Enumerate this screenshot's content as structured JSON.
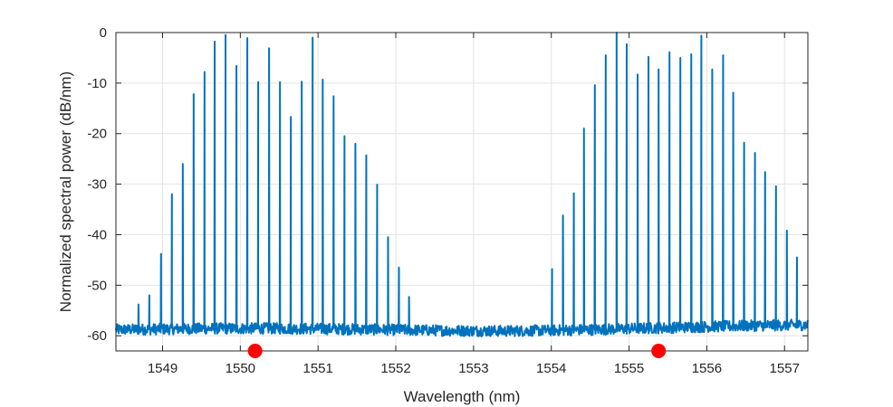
{
  "chart_data": {
    "type": "line",
    "title": "",
    "xlabel": "Wavelength (nm)",
    "ylabel": "Normalized spectral power (dB/nm)",
    "xlim": [
      1548.4,
      1557.3
    ],
    "ylim": [
      -63,
      0
    ],
    "xticks": [
      "1549",
      "1550",
      "1551",
      "1552",
      "1553",
      "1554",
      "1555",
      "1556",
      "1557"
    ],
    "yticks": [
      "0",
      "-10",
      "-20",
      "-30",
      "-40",
      "-50",
      "-60"
    ],
    "grid": true,
    "line_color": "#0072BD",
    "noise_floor_db": -58.8,
    "series": [
      {
        "peaks": [
          {
            "x": 1548.69,
            "y": -53.8
          },
          {
            "x": 1548.83,
            "y": -52.0
          },
          {
            "x": 1548.98,
            "y": -43.8
          },
          {
            "x": 1549.12,
            "y": -32.0
          },
          {
            "x": 1549.26,
            "y": -26.0
          },
          {
            "x": 1549.4,
            "y": -12.2
          },
          {
            "x": 1549.54,
            "y": -7.8
          },
          {
            "x": 1549.67,
            "y": -1.8
          },
          {
            "x": 1549.81,
            "y": -0.5
          },
          {
            "x": 1549.95,
            "y": -6.6
          },
          {
            "x": 1550.09,
            "y": -1.1
          },
          {
            "x": 1550.23,
            "y": -9.8
          },
          {
            "x": 1550.37,
            "y": -3.1
          },
          {
            "x": 1550.51,
            "y": -9.8
          },
          {
            "x": 1550.65,
            "y": -16.7
          },
          {
            "x": 1550.79,
            "y": -9.7
          },
          {
            "x": 1550.93,
            "y": -1.0
          },
          {
            "x": 1551.06,
            "y": -9.3
          },
          {
            "x": 1551.2,
            "y": -12.6
          },
          {
            "x": 1551.34,
            "y": -20.5
          },
          {
            "x": 1551.48,
            "y": -22.0
          },
          {
            "x": 1551.62,
            "y": -24.3
          },
          {
            "x": 1551.76,
            "y": -30.1
          },
          {
            "x": 1551.9,
            "y": -40.5
          },
          {
            "x": 1552.04,
            "y": -46.5
          },
          {
            "x": 1552.17,
            "y": -52.3
          }
        ]
      },
      {
        "peaks": [
          {
            "x": 1554.01,
            "y": -46.8
          },
          {
            "x": 1554.15,
            "y": -36.2
          },
          {
            "x": 1554.29,
            "y": -31.8
          },
          {
            "x": 1554.42,
            "y": -19.0
          },
          {
            "x": 1554.56,
            "y": -10.4
          },
          {
            "x": 1554.7,
            "y": -4.5
          },
          {
            "x": 1554.84,
            "y": 0.0
          },
          {
            "x": 1554.97,
            "y": -2.3
          },
          {
            "x": 1555.11,
            "y": -8.3
          },
          {
            "x": 1555.25,
            "y": -4.8
          },
          {
            "x": 1555.38,
            "y": -7.3
          },
          {
            "x": 1555.52,
            "y": -3.9
          },
          {
            "x": 1555.66,
            "y": -5.0
          },
          {
            "x": 1555.8,
            "y": -4.3
          },
          {
            "x": 1555.93,
            "y": -0.6
          },
          {
            "x": 1556.07,
            "y": -7.3
          },
          {
            "x": 1556.21,
            "y": -4.5
          },
          {
            "x": 1556.34,
            "y": -11.9
          },
          {
            "x": 1556.48,
            "y": -21.8
          },
          {
            "x": 1556.62,
            "y": -23.8
          },
          {
            "x": 1556.75,
            "y": -27.6
          },
          {
            "x": 1556.89,
            "y": -30.4
          },
          {
            "x": 1557.03,
            "y": -39.2
          },
          {
            "x": 1557.16,
            "y": -44.5
          }
        ]
      }
    ],
    "markers": [
      {
        "x": 1550.19,
        "y": -63.0,
        "color": "#FF0000"
      },
      {
        "x": 1555.38,
        "y": -63.0,
        "color": "#FF0000"
      }
    ]
  }
}
